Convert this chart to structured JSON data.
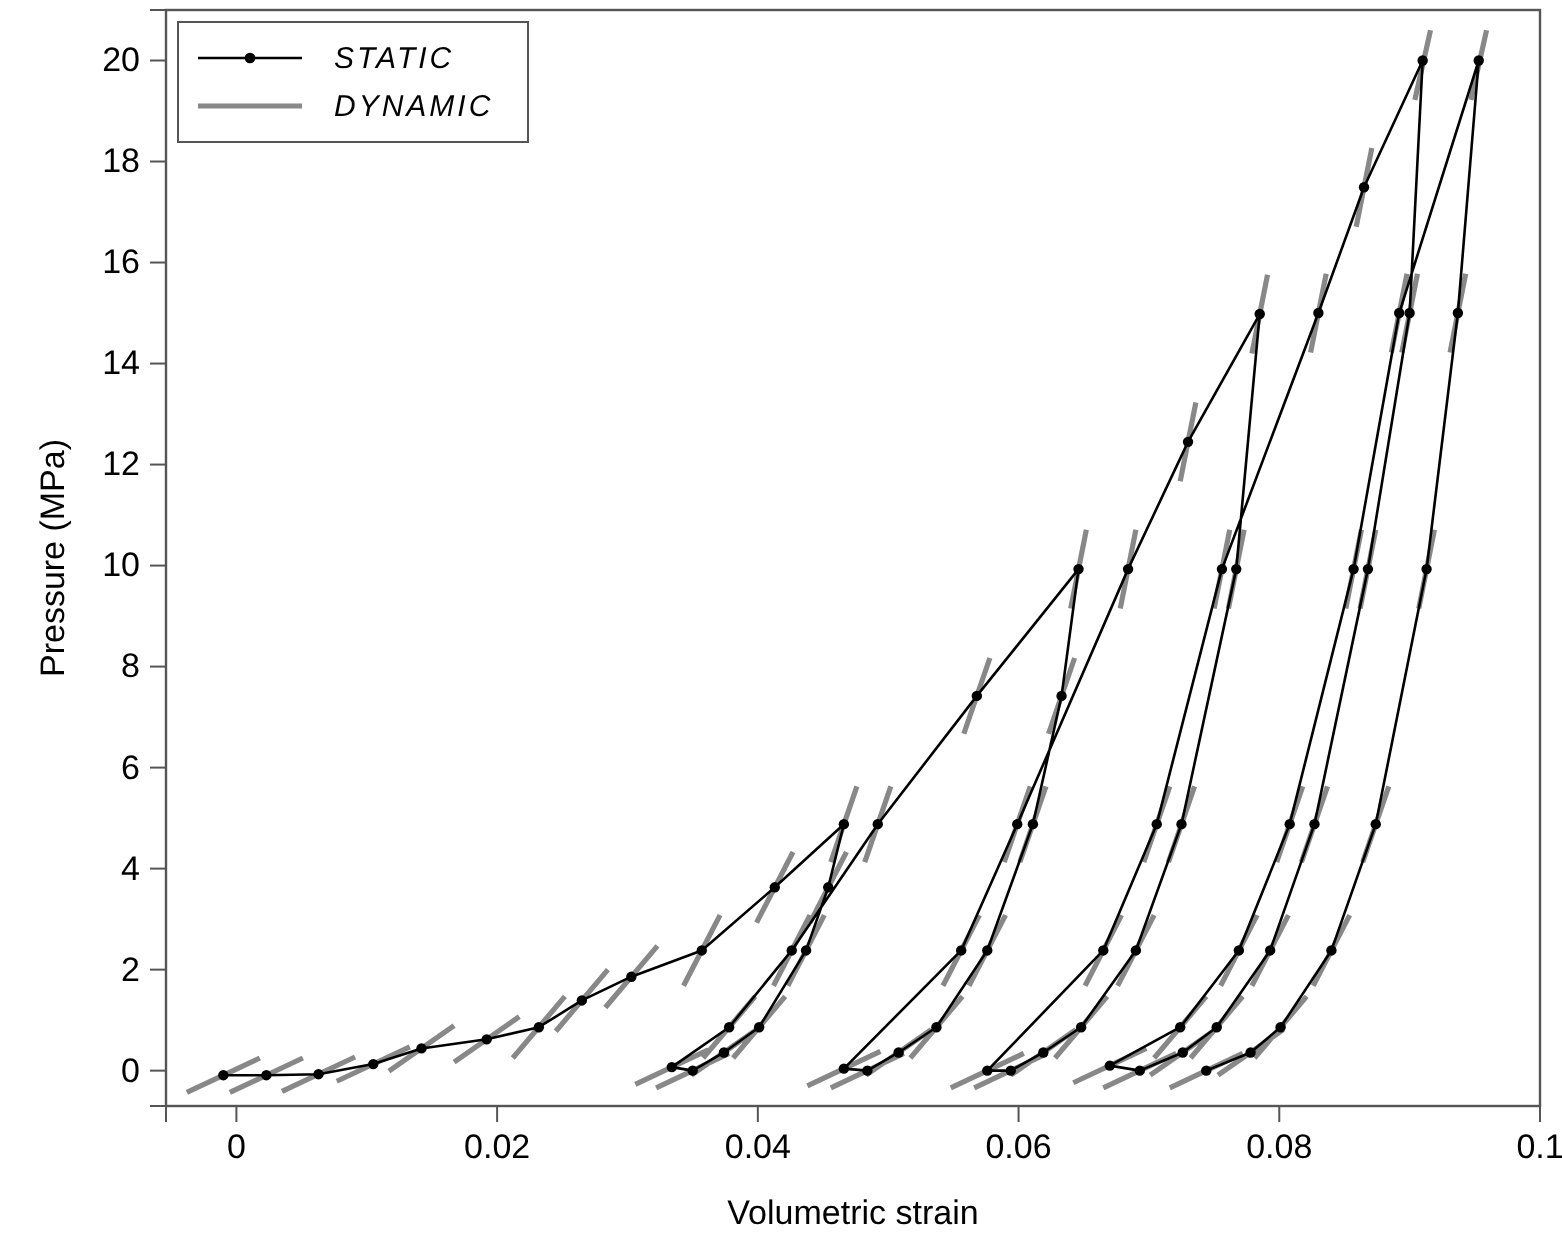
{
  "chart_data": {
    "type": "line",
    "xlabel": "Volumetric strain",
    "ylabel": "Pressure (MPa)",
    "xlim": [
      -0.0054,
      0.1
    ],
    "ylim": [
      -0.7,
      21
    ],
    "xticks": [
      0,
      0.02,
      0.04,
      0.06,
      0.08,
      {
        "value": 0.1,
        "label": "0.1"
      }
    ],
    "yticks": [
      0,
      2,
      4,
      6,
      8,
      10,
      12,
      14,
      16,
      18,
      20
    ],
    "grid": false,
    "legend": "top left",
    "series": [
      {
        "name": "DYNAMIC",
        "color": "#888888",
        "marker": "none",
        "x": [
          -0.0038,
          0.0018,
          null,
          -0.0005,
          0.0051,
          null,
          0.0035,
          0.0091,
          null,
          0.0077,
          0.0133,
          null,
          0.0117,
          0.0167,
          null,
          0.0167,
          0.0217,
          null,
          0.0212,
          0.0252,
          null,
          0.0245,
          0.0285,
          null,
          0.0283,
          0.0323,
          null,
          0.0343,
          0.0371,
          null,
          0.0399,
          0.0427,
          null,
          0.0456,
          0.0476,
          null,
          0.044,
          0.0468,
          null,
          0.0423,
          0.0451,
          null,
          0.0381,
          0.0421,
          null,
          0.0349,
          0.0399,
          null,
          0.0322,
          0.0378,
          null,
          0.0306,
          0.0362,
          null,
          0.0358,
          0.0398,
          null,
          0.0412,
          0.044,
          null,
          0.0482,
          0.0502,
          null,
          0.0558,
          0.0578,
          null,
          0.064,
          0.0652,
          null,
          0.0623,
          0.0643,
          null,
          0.0601,
          0.0621,
          null,
          0.0562,
          0.059,
          null,
          0.0517,
          0.0557,
          null,
          0.0483,
          0.0533,
          null,
          0.0456,
          0.0512,
          null,
          0.0438,
          0.0494,
          null,
          0.0542,
          0.057,
          null,
          0.0589,
          0.0609,
          null,
          0.0678,
          0.069,
          null,
          0.0724,
          0.0736,
          null,
          0.0779,
          0.0791,
          null,
          0.0761,
          0.0773,
          null,
          0.0715,
          0.0735,
          null,
          0.0676,
          0.0704,
          null,
          0.0628,
          0.0668,
          null,
          0.0594,
          0.0644,
          null,
          0.0566,
          0.0622,
          null,
          0.0548,
          0.0604,
          null,
          0.0651,
          0.0679,
          null,
          0.0696,
          0.0716,
          null,
          0.075,
          0.0762,
          null,
          0.0824,
          0.0836,
          null,
          0.0859,
          0.0871,
          null,
          0.0904,
          0.0916,
          null,
          0.0894,
          0.0906,
          null,
          0.0862,
          0.0874,
          null,
          0.0817,
          0.0837,
          null,
          0.0779,
          0.0807,
          null,
          0.0732,
          0.0772,
          null,
          0.0701,
          0.0751,
          null,
          0.0665,
          0.0721,
          null,
          0.0642,
          0.0698,
          null,
          0.0704,
          0.0744,
          null,
          0.0755,
          0.0783,
          null,
          0.0798,
          0.0818,
          null,
          0.0851,
          0.0863,
          null,
          0.0886,
          0.0898,
          null,
          0.0947,
          0.0959,
          null,
          0.0931,
          0.0943,
          null,
          0.0907,
          0.0919,
          null,
          0.0864,
          0.0884,
          null,
          0.0826,
          0.0854,
          null,
          0.0781,
          0.0821,
          null,
          0.0753,
          0.0803,
          null,
          0.0716,
          0.0772
        ],
        "values": [
          -0.43,
          0.25,
          null,
          -0.43,
          0.25,
          null,
          -0.41,
          0.27,
          null,
          -0.21,
          0.47,
          null,
          -0.01,
          0.89,
          null,
          0.17,
          1.07,
          null,
          0.25,
          1.47,
          null,
          0.78,
          2.0,
          null,
          1.25,
          2.47,
          null,
          1.68,
          3.08,
          null,
          2.93,
          4.33,
          null,
          4.13,
          5.63,
          null,
          2.93,
          4.33,
          null,
          1.68,
          3.08,
          null,
          0.25,
          1.47,
          null,
          -0.09,
          0.81,
          null,
          -0.34,
          0.34,
          null,
          -0.27,
          0.41,
          null,
          0.25,
          1.47,
          null,
          1.68,
          3.08,
          null,
          4.13,
          5.63,
          null,
          6.67,
          8.17,
          null,
          9.15,
          10.71,
          null,
          6.67,
          8.17,
          null,
          4.13,
          5.63,
          null,
          1.68,
          3.08,
          null,
          0.25,
          1.47,
          null,
          -0.09,
          0.81,
          null,
          -0.34,
          0.34,
          null,
          -0.3,
          0.38,
          null,
          1.68,
          3.08,
          null,
          4.13,
          5.63,
          null,
          9.15,
          10.71,
          null,
          11.67,
          13.23,
          null,
          14.2,
          15.76,
          null,
          9.15,
          10.71,
          null,
          4.13,
          5.63,
          null,
          1.68,
          3.08,
          null,
          0.25,
          1.47,
          null,
          -0.09,
          0.81,
          null,
          -0.34,
          0.34,
          null,
          -0.34,
          0.34,
          null,
          1.68,
          3.08,
          null,
          4.13,
          5.63,
          null,
          9.15,
          10.71,
          null,
          14.22,
          15.78,
          null,
          16.71,
          18.27,
          null,
          19.22,
          20.6,
          null,
          14.22,
          15.78,
          null,
          9.15,
          10.71,
          null,
          4.13,
          5.63,
          null,
          1.68,
          3.08,
          null,
          0.25,
          1.47,
          null,
          -0.09,
          0.81,
          null,
          -0.34,
          0.34,
          null,
          -0.24,
          0.44,
          null,
          0.25,
          1.47,
          null,
          1.68,
          3.08,
          null,
          4.13,
          5.63,
          null,
          9.15,
          10.71,
          null,
          14.22,
          15.78,
          null,
          19.22,
          20.6,
          null,
          14.22,
          15.78,
          null,
          9.15,
          10.71,
          null,
          4.13,
          5.63,
          null,
          1.68,
          3.08,
          null,
          0.25,
          1.47,
          null,
          -0.09,
          0.81,
          null,
          -0.34,
          0.34
        ]
      },
      {
        "name": "STATIC",
        "color": "#000000",
        "marker": "circle",
        "x": [
          -0.001,
          0.0023,
          0.0063,
          0.0105,
          0.0142,
          0.0192,
          0.0232,
          0.0265,
          0.0303,
          0.0357,
          0.0413,
          0.0466,
          0.0454,
          0.0437,
          0.0401,
          0.0374,
          0.035,
          0.0334,
          0.0378,
          0.0426,
          0.0492,
          0.0568,
          0.0646,
          0.0633,
          0.0611,
          0.0576,
          0.0537,
          0.0508,
          0.0484,
          0.0466,
          0.0556,
          0.0599,
          0.0684,
          0.073,
          0.0785,
          0.0767,
          0.0725,
          0.069,
          0.0648,
          0.0619,
          0.0594,
          0.0576,
          0.0665,
          0.0706,
          0.0756,
          0.083,
          0.0865,
          0.091,
          0.09,
          0.0868,
          0.0827,
          0.0793,
          0.0752,
          0.0726,
          0.0693,
          0.067,
          0.0724,
          0.0769,
          0.0808,
          0.0857,
          0.0892,
          0.0953,
          0.0937,
          0.0913,
          0.0874,
          0.084,
          0.0801,
          0.0778,
          0.0744
        ],
        "values": [
          -0.09,
          -0.09,
          -0.07,
          0.13,
          0.44,
          0.62,
          0.86,
          1.39,
          1.86,
          2.38,
          3.63,
          4.88,
          3.63,
          2.38,
          0.86,
          0.36,
          0,
          0.07,
          0.86,
          2.38,
          4.88,
          7.42,
          9.93,
          7.42,
          4.88,
          2.38,
          0.86,
          0.36,
          0,
          0.04,
          2.38,
          4.88,
          9.93,
          12.45,
          14.98,
          9.93,
          4.88,
          2.38,
          0.86,
          0.36,
          0,
          0,
          2.38,
          4.88,
          9.93,
          15,
          17.49,
          20,
          15,
          9.93,
          4.88,
          2.38,
          0.86,
          0.36,
          0,
          0.1,
          0.86,
          2.38,
          4.88,
          9.93,
          15,
          20,
          15,
          9.93,
          4.88,
          2.38,
          0.86,
          0.36,
          0
        ]
      }
    ]
  }
}
